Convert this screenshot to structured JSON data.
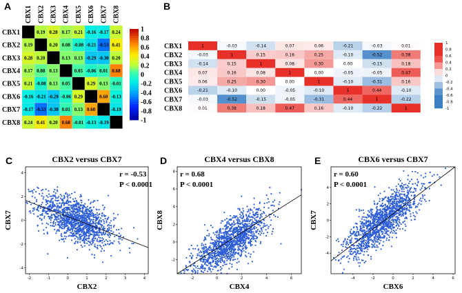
{
  "panels": {
    "a": "A",
    "b": "B",
    "c": "C",
    "d": "D",
    "e": "E"
  },
  "chart_data": [
    {
      "type": "heatmap",
      "panel": "A",
      "colormap": "jet",
      "diagonal_color": "#000000",
      "labels": [
        "CBX1",
        "CBX2",
        "CBX3",
        "CBX4",
        "CBX5",
        "CBX6",
        "CBX7",
        "CBX8"
      ],
      "matrix": [
        [
          null,
          0.19,
          0.28,
          0.17,
          0.21,
          -0.16,
          -0.17,
          0.24
        ],
        [
          0.19,
          null,
          0.2,
          0.08,
          -0.08,
          -0.21,
          -0.53,
          0.41
        ],
        [
          0.28,
          0.2,
          null,
          0.13,
          0.13,
          -0.29,
          -0.3,
          0.2
        ],
        [
          0.17,
          0.08,
          0.13,
          null,
          0.05,
          -0.06,
          0.01,
          0.68
        ],
        [
          0.21,
          -0.08,
          0.13,
          0.05,
          null,
          0.29,
          0.13,
          -0.01
        ],
        [
          -0.16,
          -0.21,
          -0.29,
          -0.06,
          0.29,
          null,
          0.6,
          -0.13
        ],
        [
          -0.17,
          -0.53,
          -0.3,
          0.01,
          0.13,
          0.6,
          null,
          -0.19
        ],
        [
          0.24,
          0.41,
          0.2,
          0.68,
          -0.01,
          -0.13,
          -0.19,
          null
        ]
      ],
      "legend_ticks": [
        "1",
        "0.8",
        "0.6",
        "0.4",
        "0.2",
        "0",
        "-0.2",
        "-0.4",
        "-0.6",
        "-0.8",
        "-1"
      ],
      "colors": {
        "diagonal": "#000000"
      }
    },
    {
      "type": "heatmap",
      "panel": "B",
      "colormap": "red-white-blue",
      "labels": [
        "CBX1",
        "CBX2",
        "CBX3",
        "CBX4",
        "CBX5",
        "CBX6",
        "CBX7",
        "CBX8"
      ],
      "matrix": [
        [
          1,
          -0.03,
          -0.14,
          0.07,
          0.06,
          -0.21,
          -0.03,
          0.01
        ],
        [
          -0.03,
          1,
          0.15,
          0.16,
          0.25,
          -0.1,
          -0.52,
          0.38
        ],
        [
          -0.14,
          0.15,
          1,
          0.08,
          0.3,
          0.0,
          -0.15,
          0.18
        ],
        [
          0.07,
          0.16,
          0.08,
          1,
          0.0,
          -0.05,
          -0.05,
          0.47
        ],
        [
          0.06,
          0.25,
          0.3,
          0.0,
          1,
          -0.1,
          -0.31,
          0.16
        ],
        [
          -0.21,
          -0.1,
          0.0,
          -0.05,
          -0.1,
          1,
          0.44,
          -0.1
        ],
        [
          -0.03,
          -0.52,
          -0.15,
          -0.05,
          -0.31,
          0.44,
          1,
          -0.22
        ],
        [
          0.01,
          0.38,
          0.18,
          0.47,
          0.16,
          -0.1,
          -0.22,
          1
        ]
      ],
      "legend_ticks": [
        "1",
        "0.8",
        "0.6",
        "0.4",
        "0.2",
        "0",
        "-0.2",
        "-0.4",
        "-0.6",
        "-0.8",
        "-1"
      ],
      "colors": {
        "positive": "#e8302a",
        "negative": "#3b7fc4",
        "zero": "#ffffff"
      }
    },
    {
      "type": "scatter",
      "panel": "C",
      "title": "CBX2 versus CBX7",
      "xlabel": "CBX2",
      "ylabel": "CBX7",
      "r": -0.53,
      "r_text": "r = -0.53",
      "p_text": "P < 0.0001",
      "xlim": [
        -2.2,
        4.2
      ],
      "ylim": [
        -4.5,
        4.5
      ],
      "xticks": [
        "-2",
        "-1",
        "0",
        "1",
        "2",
        "3",
        "4"
      ],
      "yticks": [
        "-4",
        "-2",
        "0",
        "2",
        "4"
      ],
      "n_points": 1400,
      "fit": {
        "slope": -0.62,
        "intercept": 0.0
      },
      "colors": {
        "points": "#2e5fd8",
        "line": "#000000"
      }
    },
    {
      "type": "scatter",
      "panel": "D",
      "title": "CBX4 versus CBX8",
      "xlabel": "CBX4",
      "ylabel": "CBX8",
      "r": 0.68,
      "r_text": "r = 0.68",
      "p_text": "P < 0.0001",
      "xlim": [
        -3.2,
        6.8
      ],
      "ylim": [
        -3.6,
        8.5
      ],
      "xticks": [
        "-2",
        "0",
        "2",
        "4",
        "6"
      ],
      "yticks": [
        "-2",
        "0",
        "2",
        "4",
        "6",
        "8"
      ],
      "n_points": 1400,
      "fit": {
        "slope": 0.92,
        "intercept": 0.0
      },
      "colors": {
        "points": "#2e5fd8",
        "line": "#000000"
      }
    },
    {
      "type": "scatter",
      "panel": "E",
      "title": "CBX6 versus CBX7",
      "xlabel": "CBX6",
      "ylabel": "CBX7",
      "r": 0.6,
      "r_text": "r = 0.60",
      "p_text": "P < 0.0001",
      "xlim": [
        -6.2,
        6.2
      ],
      "ylim": [
        -6.5,
        6.5
      ],
      "xticks": [
        "-4",
        "-2",
        "0",
        "2",
        "4",
        "6"
      ],
      "yticks": [
        "-4",
        "-2",
        "0",
        "2",
        "4"
      ],
      "n_points": 1400,
      "fit": {
        "slope": 0.95,
        "intercept": 0.0
      },
      "colors": {
        "points": "#2e5fd8",
        "line": "#000000"
      }
    }
  ]
}
